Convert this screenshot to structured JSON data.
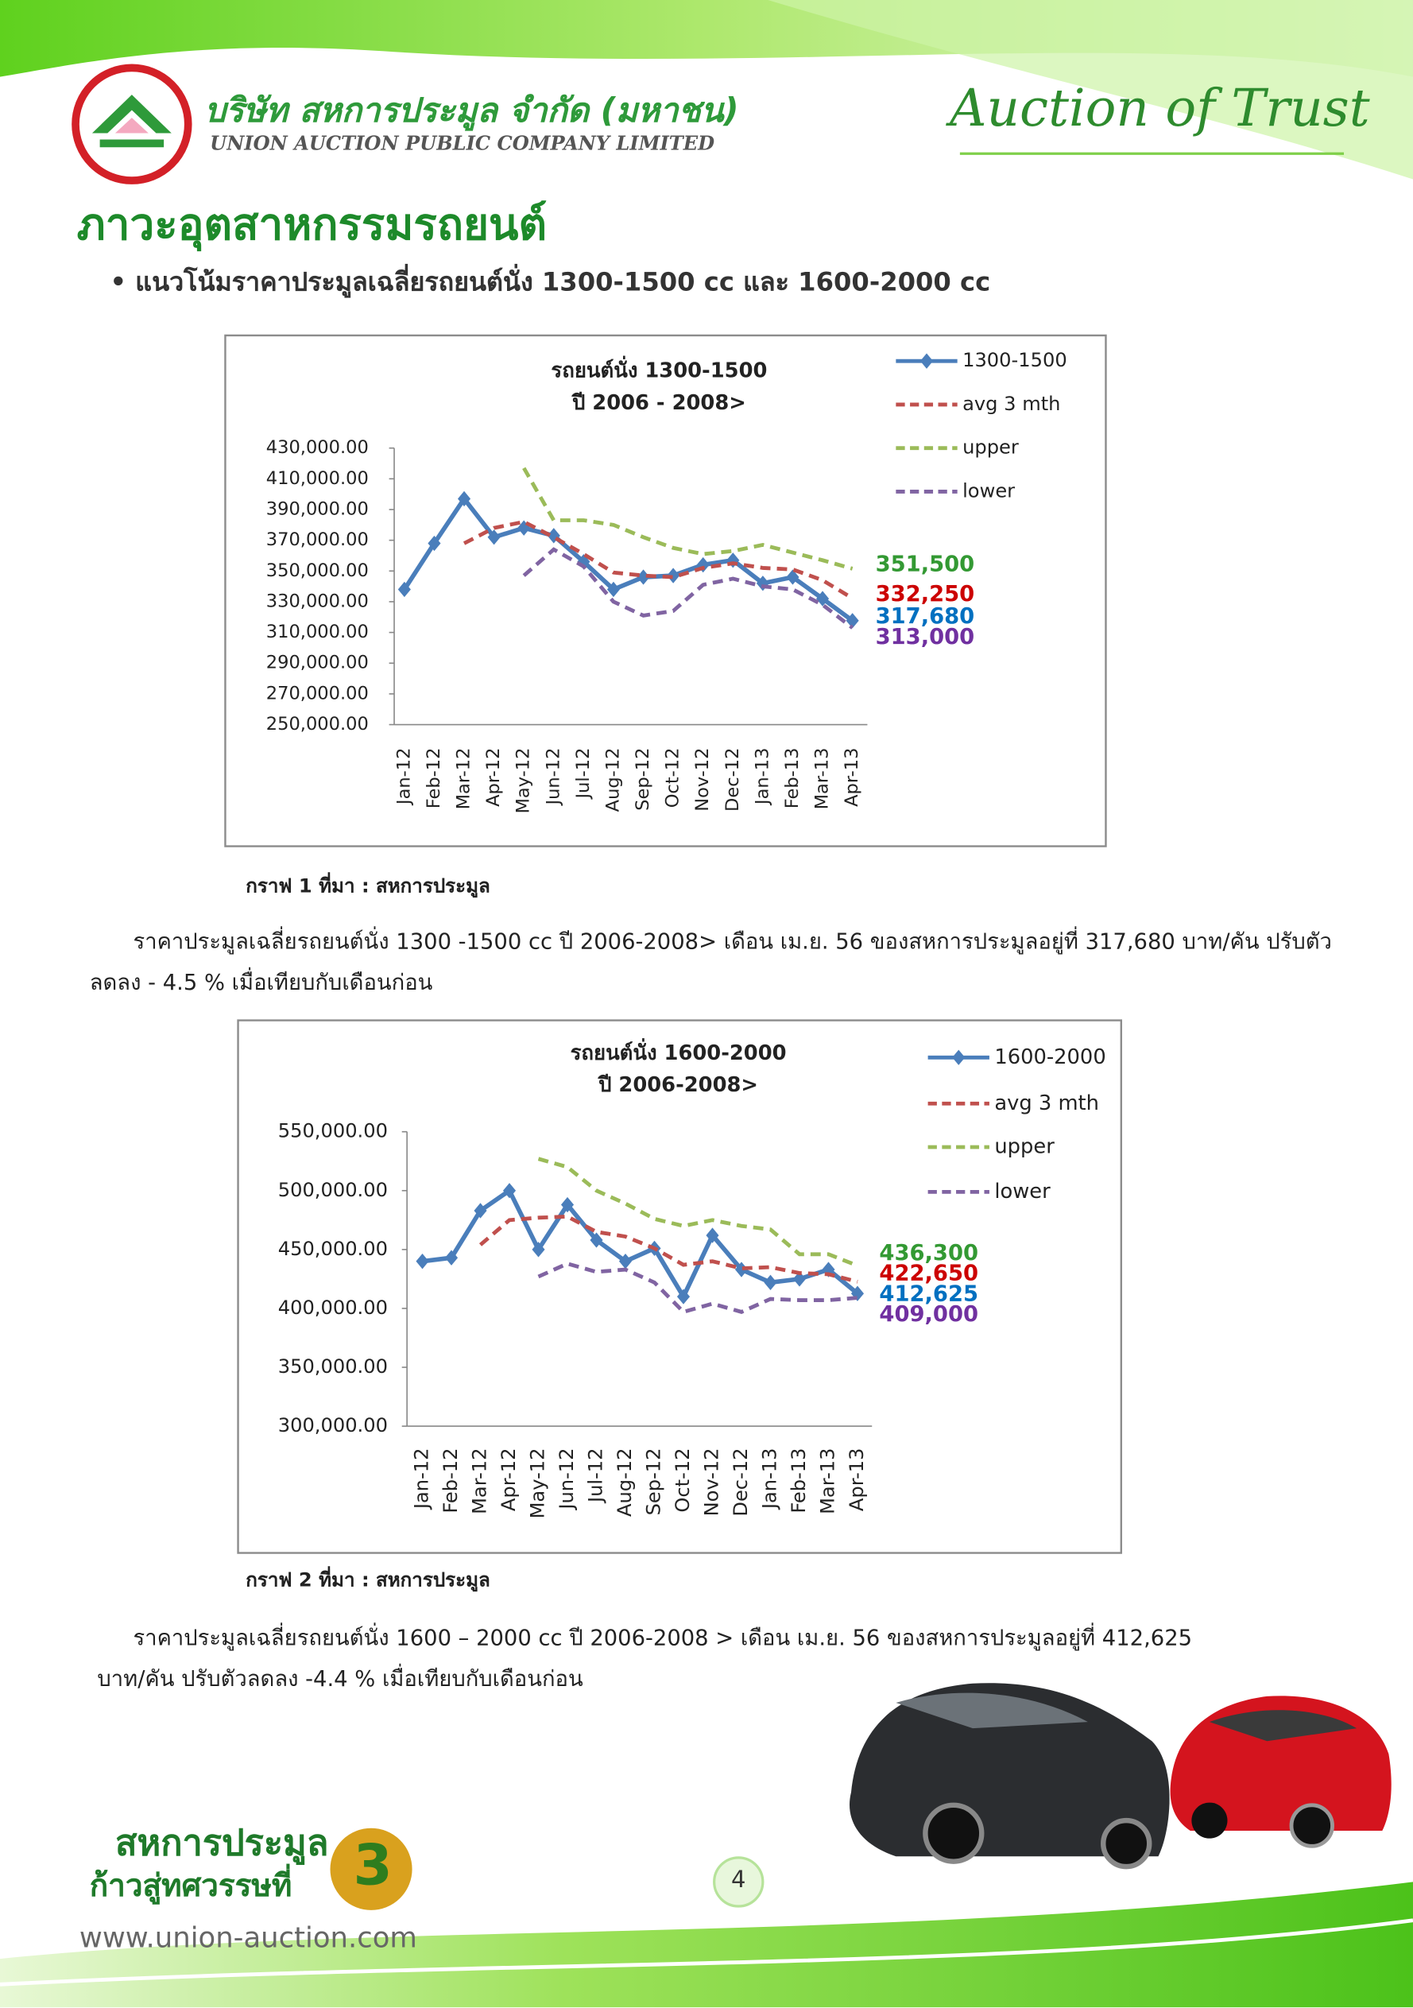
{
  "header": {
    "company_th": "บริษัท สหการประมูล จำกัด (มหาชน)",
    "company_en": "UNION AUCTION PUBLIC COMPANY LIMITED",
    "slogan": "Auction of Trust"
  },
  "heading": "ภาวะอุตสาหกรรมรถยนต์",
  "subheading": "แนวโน้มราคาประมูลเฉลี่ยรถยนต์นั่ง  1300-1500 cc และ 1600-2000 cc",
  "chart_data": [
    {
      "type": "line",
      "title": "รถยนต์นั่ง 1300-1500",
      "subtitle": "ปี 2006 - 2008>",
      "categories": [
        "Jan-12",
        "Feb-12",
        "Mar-12",
        "Apr-12",
        "May-12",
        "Jun-12",
        "Jul-12",
        "Aug-12",
        "Sep-12",
        "Oct-12",
        "Nov-12",
        "Dec-12",
        "Jan-13",
        "Feb-13",
        "Mar-13",
        "Apr-13"
      ],
      "ylim": [
        250000,
        430000
      ],
      "yticks": [
        {
          "value": 250000,
          "label": "250,000.00"
        },
        {
          "value": 270000,
          "label": "270,000.00"
        },
        {
          "value": 290000,
          "label": "290,000.00"
        },
        {
          "value": 310000,
          "label": "310,000.00"
        },
        {
          "value": 330000,
          "label": "330,000.00"
        },
        {
          "value": 350000,
          "label": "350,000.00"
        },
        {
          "value": 370000,
          "label": "370,000.00"
        },
        {
          "value": 390000,
          "label": "390,000.00"
        },
        {
          "value": 410000,
          "label": "410,000.00"
        },
        {
          "value": 430000,
          "label": "430,000.00"
        }
      ],
      "series": [
        {
          "name": "1300-1500",
          "color": "#4a7ebb",
          "dashed": false,
          "markers": true,
          "label_color": "#0070c0",
          "values": [
            338000,
            368000,
            397000,
            372000,
            378000,
            373000,
            356000,
            338000,
            346000,
            347000,
            354000,
            357000,
            342000,
            346000,
            332000,
            317680
          ],
          "value_labels": [
            null,
            null,
            null,
            null,
            null,
            null,
            null,
            null,
            null,
            null,
            null,
            null,
            null,
            null,
            null,
            "317,680"
          ]
        },
        {
          "name": "avg 3 mth",
          "color": "#c0504d",
          "dashed": true,
          "markers": false,
          "label_color": "#cc0000",
          "values": [
            null,
            null,
            368000,
            378000,
            382000,
            372000,
            361000,
            349000,
            347000,
            346000,
            352000,
            355000,
            352000,
            351000,
            344000,
            332250
          ],
          "value_labels": [
            null,
            null,
            null,
            null,
            null,
            null,
            null,
            null,
            null,
            null,
            null,
            null,
            null,
            null,
            null,
            "332,250"
          ]
        },
        {
          "name": "upper",
          "color": "#9bbb59",
          "dashed": true,
          "markers": false,
          "label_color": "#339933",
          "values": [
            null,
            null,
            null,
            null,
            417000,
            383000,
            383000,
            380000,
            372000,
            365000,
            361000,
            363000,
            367000,
            362000,
            357000,
            351500
          ],
          "value_labels": [
            null,
            null,
            null,
            null,
            null,
            null,
            null,
            null,
            null,
            null,
            null,
            null,
            null,
            null,
            null,
            "351,500"
          ]
        },
        {
          "name": "lower",
          "color": "#8064a2",
          "dashed": true,
          "markers": false,
          "label_color": "#7030a0",
          "values": [
            null,
            null,
            null,
            null,
            347000,
            364000,
            353000,
            330000,
            321000,
            324000,
            341000,
            345000,
            340000,
            338000,
            328000,
            313000
          ],
          "value_labels": [
            null,
            null,
            null,
            null,
            null,
            null,
            null,
            null,
            null,
            null,
            null,
            null,
            null,
            null,
            null,
            "313,000"
          ]
        }
      ]
    },
    {
      "type": "line",
      "title": "รถยนต์นั่ง 1600-2000",
      "subtitle": "ปี 2006-2008>",
      "categories": [
        "Jan-12",
        "Feb-12",
        "Mar-12",
        "Apr-12",
        "May-12",
        "Jun-12",
        "Jul-12",
        "Aug-12",
        "Sep-12",
        "Oct-12",
        "Nov-12",
        "Dec-12",
        "Jan-13",
        "Feb-13",
        "Mar-13",
        "Apr-13"
      ],
      "ylim": [
        300000,
        550000
      ],
      "yticks": [
        {
          "value": 300000,
          "label": "300,000.00"
        },
        {
          "value": 350000,
          "label": "350,000.00"
        },
        {
          "value": 400000,
          "label": "400,000.00"
        },
        {
          "value": 450000,
          "label": "450,000.00"
        },
        {
          "value": 500000,
          "label": "500,000.00"
        },
        {
          "value": 550000,
          "label": "550,000.00"
        }
      ],
      "series": [
        {
          "name": "1600-2000",
          "color": "#4a7ebb",
          "dashed": false,
          "markers": true,
          "label_color": "#0070c0",
          "values": [
            440000,
            443000,
            483000,
            500000,
            450000,
            488000,
            458000,
            440000,
            451000,
            410000,
            462000,
            433000,
            422000,
            425000,
            433000,
            412625
          ],
          "value_labels": [
            null,
            null,
            null,
            null,
            null,
            null,
            null,
            null,
            null,
            null,
            null,
            null,
            null,
            null,
            null,
            "412,625"
          ]
        },
        {
          "name": "avg 3 mth",
          "color": "#c0504d",
          "dashed": true,
          "markers": false,
          "label_color": "#cc0000",
          "values": [
            null,
            null,
            454000,
            475000,
            477000,
            478000,
            465000,
            461000,
            451000,
            437000,
            440000,
            434000,
            435000,
            430000,
            429000,
            422650
          ],
          "value_labels": [
            null,
            null,
            null,
            null,
            null,
            null,
            null,
            null,
            null,
            null,
            null,
            null,
            null,
            null,
            null,
            "422,650"
          ]
        },
        {
          "name": "upper",
          "color": "#9bbb59",
          "dashed": true,
          "markers": false,
          "label_color": "#339933",
          "values": [
            null,
            null,
            null,
            null,
            527000,
            520000,
            500000,
            489000,
            476000,
            470000,
            475000,
            470000,
            467000,
            446000,
            446000,
            436300
          ],
          "value_labels": [
            null,
            null,
            null,
            null,
            null,
            null,
            null,
            null,
            null,
            null,
            null,
            null,
            null,
            null,
            null,
            "436,300"
          ]
        },
        {
          "name": "lower",
          "color": "#8064a2",
          "dashed": true,
          "markers": false,
          "label_color": "#7030a0",
          "values": [
            null,
            null,
            null,
            null,
            427000,
            438000,
            431000,
            433000,
            422000,
            397000,
            404000,
            397000,
            408000,
            407000,
            407000,
            409000
          ],
          "value_labels": [
            null,
            null,
            null,
            null,
            null,
            null,
            null,
            null,
            null,
            null,
            null,
            null,
            null,
            null,
            null,
            "409,000"
          ]
        }
      ]
    }
  ],
  "captions": [
    "กราฟ 1 ที่มา : สหการประมูล",
    "กราฟ 2 ที่มา : สหการประมูล"
  ],
  "paragraphs": [
    "ราคาประมูลเฉลี่ยรถยนต์นั่ง 1300 -1500 cc ปี 2006-2008> เดือน เม.ย. 56 ของสหการประมูลอยู่ที่  317,680 บาท/คัน ปรับตัวลดลง  - 4.5 % เมื่อเทียบกับเดือนก่อน",
    "ราคาประมูลเฉลี่ยรถยนต์นั่ง  1600 – 2000 cc ปี 2006-2008 >  เดือน เม.ย. 56 ของสหการประมูลอยู่ที่ 412,625 บาท/คัน ปรับตัวลดลง  -4.4 % เมื่อเทียบกับเดือนก่อน"
  ],
  "footer": {
    "brand_line1": "สหการประมูล",
    "brand_line2": "ก้าวสู่ทศวรรษที่",
    "brand_number": "3",
    "website": "www.union-auction.com",
    "page_number": "4"
  }
}
